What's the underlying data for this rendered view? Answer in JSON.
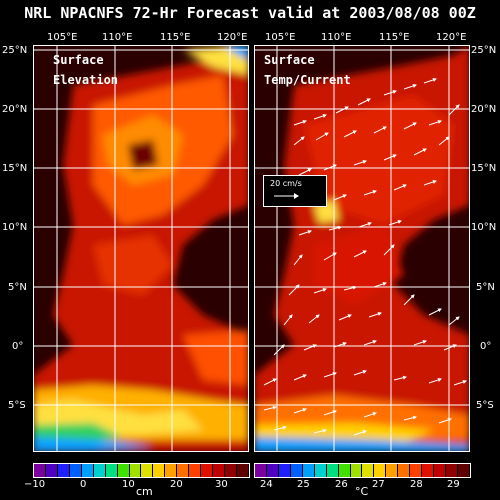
{
  "title": "NRL NPACNFS 72-Hr Forecast valid at 2003/08/08 00Z",
  "left_panel": {
    "label_line1": "Surface",
    "label_line2": "Elevation"
  },
  "right_panel": {
    "label_line1": "Surface",
    "label_line2": "Temp/Current",
    "scale_label": "20 cm/s"
  },
  "lon_ticks": [
    "105°E",
    "110°E",
    "115°E",
    "120°E"
  ],
  "lat_ticks": [
    "25°N",
    "20°N",
    "15°N",
    "10°N",
    "5°N",
    "0°",
    "5°S"
  ],
  "colorbar_left": {
    "ticks": [
      "−10",
      "0",
      "10",
      "20",
      "30"
    ],
    "unit": "cm"
  },
  "colorbar_right": {
    "ticks": [
      "24",
      "25",
      "26",
      "27",
      "28",
      "29"
    ],
    "unit": "°C"
  },
  "colors": {
    "land": "#2a0000",
    "ocean_warm": "#d81a00",
    "ocean_mid": "#ff5000",
    "ocean_high": "#ff9a00",
    "cool": "#10a0ff",
    "grid": "#ffffff"
  }
}
